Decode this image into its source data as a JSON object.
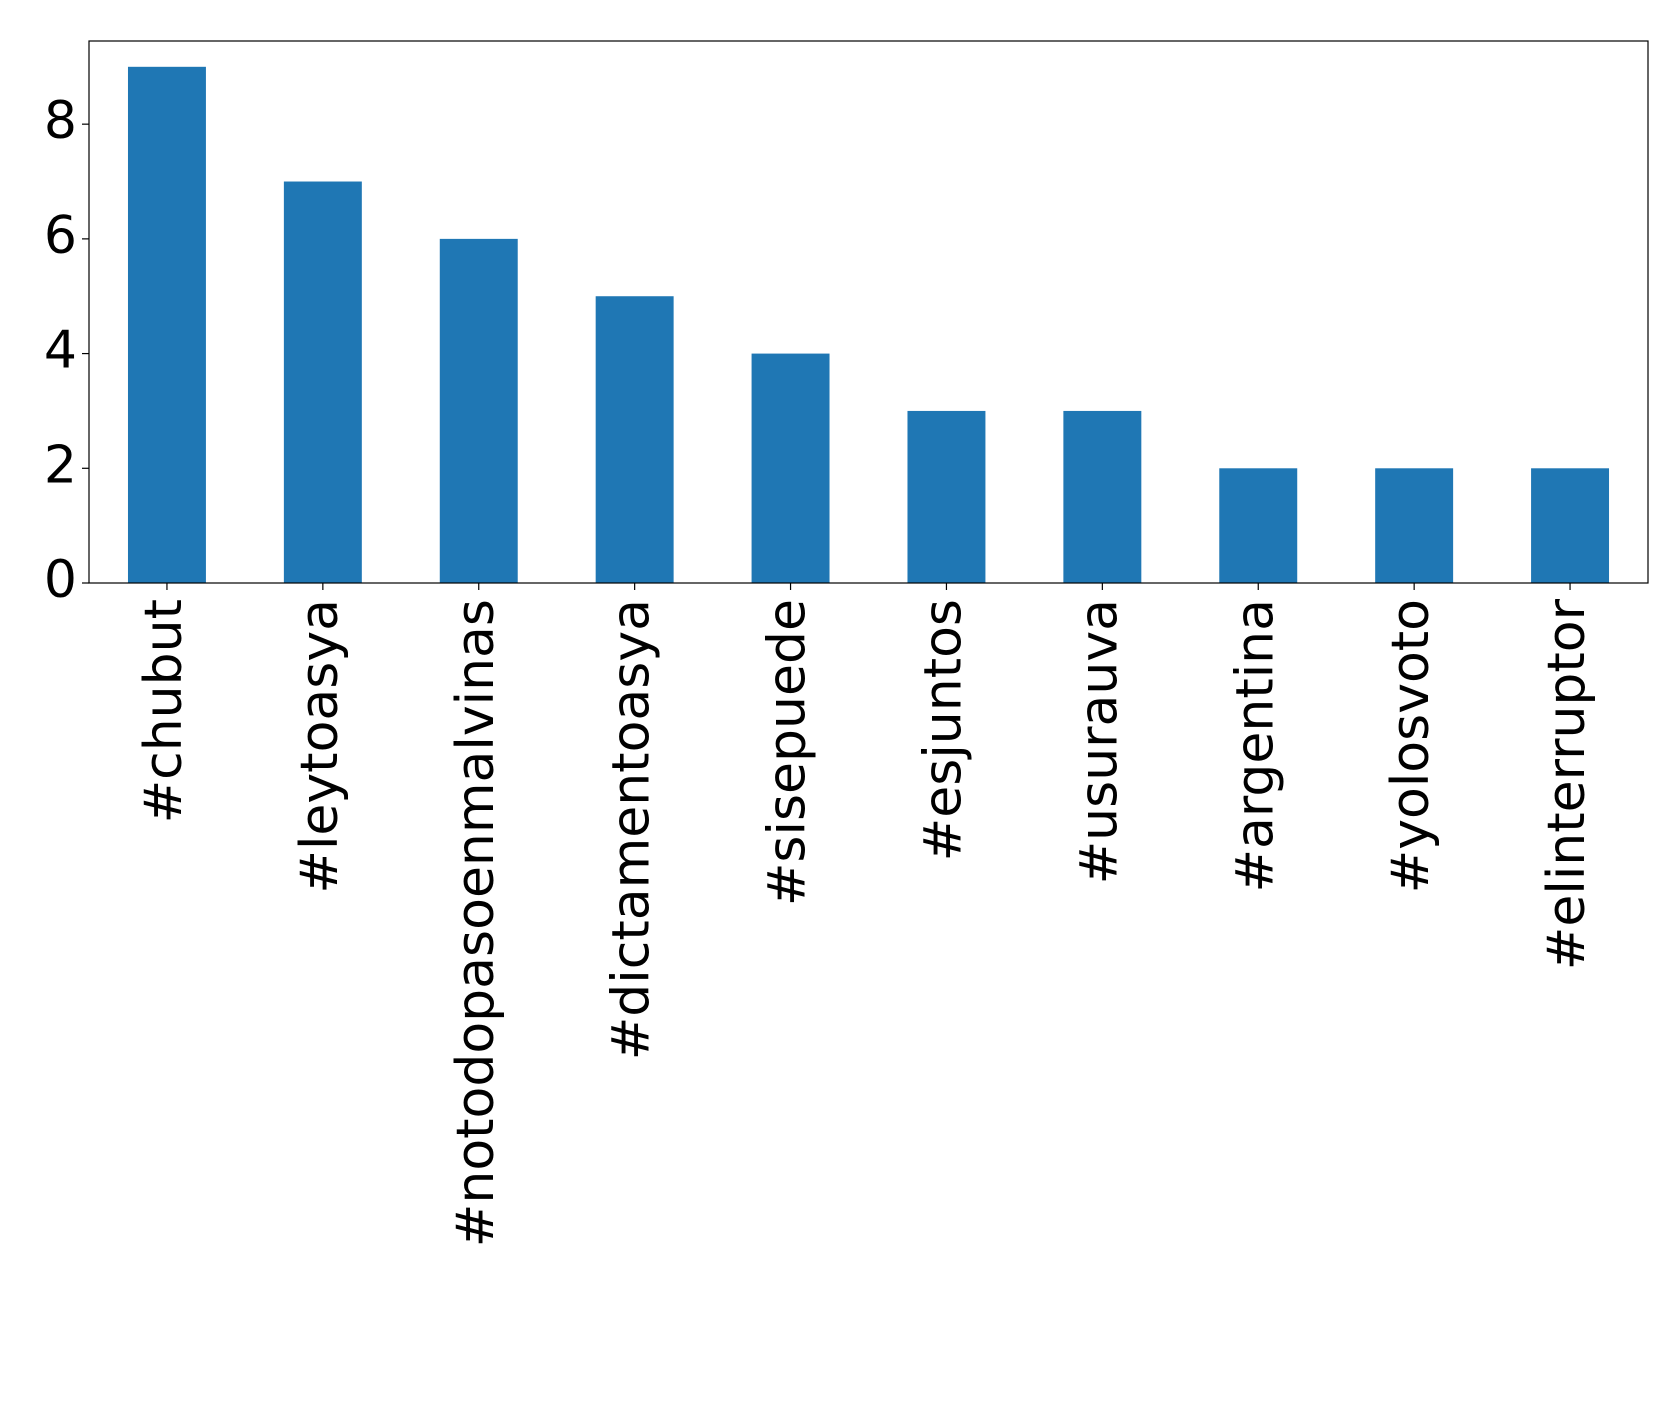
{
  "chart_data": {
    "type": "bar",
    "categories": [
      "#chubut",
      "#leytoasya",
      "#notodopasoenmalvinas",
      "#dictamentoasya",
      "#sisepuede",
      "#esjuntos",
      "#usurauva",
      "#argentina",
      "#yolosvoto",
      "#elinterruptor"
    ],
    "values": [
      9,
      7,
      6,
      5,
      4,
      3,
      3,
      2,
      2,
      2
    ],
    "color": "#1f77b4",
    "ylim": [
      0,
      9.45
    ],
    "yticks": [
      0,
      2,
      4,
      6,
      8
    ],
    "grid": false
  }
}
